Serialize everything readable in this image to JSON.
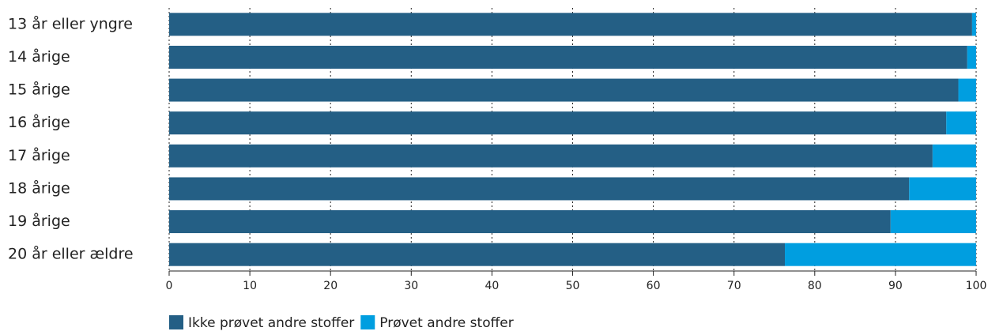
{
  "chart_data": {
    "type": "bar",
    "orientation": "horizontal",
    "stacked": true,
    "categories": [
      "13 år eller yngre",
      "14 årige",
      "15 årige",
      "16 årige",
      "17 årige",
      "18 årige",
      "19 årige",
      "20 år eller ældre"
    ],
    "series": [
      {
        "name": "Ikke prøvet andre stoffer",
        "color": "#245f85",
        "values": [
          99.5,
          98.9,
          97.8,
          96.3,
          94.6,
          91.7,
          89.4,
          76.3
        ]
      },
      {
        "name": "Prøvet andre stoffer",
        "color": "#009ee0",
        "values": [
          0.5,
          1.1,
          2.2,
          3.7,
          5.4,
          8.3,
          10.6,
          23.7
        ]
      }
    ],
    "xlim": [
      0,
      100
    ],
    "xticks": [
      0,
      10,
      20,
      30,
      40,
      50,
      60,
      70,
      80,
      90,
      100
    ],
    "grid": true,
    "legend": "bottom-left"
  }
}
